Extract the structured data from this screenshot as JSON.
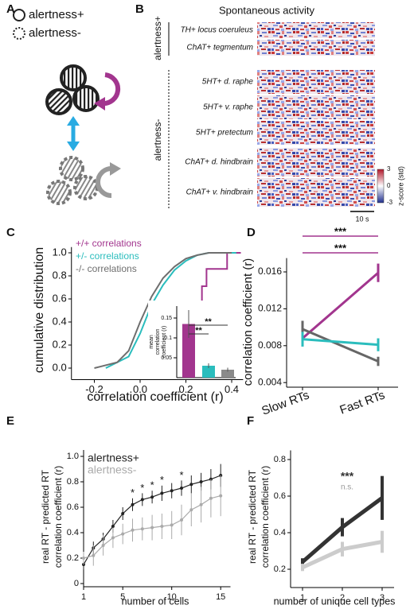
{
  "chart_data": [
    {
      "type": "diagram",
      "panel": "A",
      "legend": [
        "alertness+",
        "alertness-"
      ]
    },
    {
      "type": "heatmap",
      "panel": "B",
      "title": "Spontaneous activity",
      "groups": [
        "alertness+",
        "alertness-"
      ],
      "rows": [
        "TH+ locus coeruleus",
        "ChAT+ tegmentum",
        "5HT+ d. raphe",
        "5HT+ v. raphe",
        "5HT+ pretectum",
        "ChAT+ d. hindbrain",
        "ChAT+ v. hindbrain"
      ],
      "colorbar": {
        "label": "z-score (std)",
        "lim": [
          -3,
          3
        ],
        "ticks": [
          3,
          0,
          -3
        ]
      },
      "scale_bar": "10 s"
    },
    {
      "type": "cdf",
      "panel": "C",
      "xlabel": "correlation coefficient (r)",
      "ylabel": "cumulative distribution",
      "xlim": [
        -0.3,
        0.45
      ],
      "ylim": [
        -0.1,
        1.05
      ],
      "xticks": [
        -0.2,
        {
          "value": 0,
          "label": "0.0"
        },
        0.2,
        0.4
      ],
      "yticks": [
        {
          "value": 0,
          "label": "0.0"
        },
        0.2,
        0.4,
        0.6,
        0.8,
        {
          "value": 1,
          "label": "1.0"
        }
      ],
      "series": [
        {
          "name": "+/+ correlations",
          "color": "#a2358e",
          "x": [
            0.05,
            0.1,
            0.1,
            0.12,
            0.12,
            0.18,
            0.18,
            0.24,
            0.24,
            0.27,
            0.27,
            0.29,
            0.29,
            0.38,
            0.38,
            0.44
          ],
          "y": [
            0,
            0,
            0.14,
            0.14,
            0.29,
            0.29,
            0.43,
            0.43,
            0.57,
            0.57,
            0.71,
            0.71,
            0.86,
            0.86,
            1.0,
            1.0
          ]
        },
        {
          "name": "+/- correlations",
          "color": "#2bbdbd",
          "x": [
            -0.15,
            -0.05,
            0,
            0.05,
            0.1,
            0.15,
            0.2,
            0.25,
            0.3,
            0.42
          ],
          "y": [
            0,
            0.1,
            0.3,
            0.55,
            0.72,
            0.85,
            0.93,
            0.98,
            1.0,
            1.0
          ]
        },
        {
          "name": "-/- correlations",
          "color": "#6e6e6e",
          "x": [
            -0.2,
            -0.1,
            -0.05,
            0,
            0.05,
            0.1,
            0.15,
            0.2,
            0.25,
            0.3,
            0.4
          ],
          "y": [
            0,
            0.05,
            0.15,
            0.4,
            0.62,
            0.78,
            0.88,
            0.95,
            0.98,
            1.0,
            1.0
          ]
        }
      ],
      "inset": {
        "type": "bar",
        "ylabel": [
          "mean",
          "correlation",
          "coefficient (r)"
        ],
        "ylim": [
          0,
          0.18
        ],
        "yticks": [
          0.05,
          0.1,
          0.15
        ],
        "values": [
          0.135,
          0.03,
          0.02
        ],
        "errors": [
          0.035,
          0.006,
          0.005
        ],
        "colors": [
          "#a2358e",
          "#2bbdbd",
          "#8a8a8a"
        ],
        "significance": [
          "**",
          "**"
        ]
      }
    },
    {
      "type": "line",
      "panel": "D",
      "ylabel": "correlation coefficient (r)",
      "categories": [
        "Slow RTs",
        "Fast RTs"
      ],
      "ylim": [
        0.0035,
        0.0175
      ],
      "yticks": [
        0.004,
        0.008,
        0.012,
        0.016
      ],
      "series": [
        {
          "color": "#a2358e",
          "values": [
            0.0088,
            0.0159
          ],
          "errors": [
            0.0008,
            0.001
          ]
        },
        {
          "color": "#666666",
          "values": [
            0.0098,
            0.0063
          ],
          "errors": [
            0.0009,
            0.0005
          ]
        },
        {
          "color": "#2bbdbd",
          "values": [
            0.0087,
            0.0081
          ],
          "errors": [
            0.0008,
            0.0007
          ]
        }
      ],
      "significance": [
        "***",
        "***"
      ]
    },
    {
      "type": "line",
      "panel": "E",
      "xlabel": "number of cells",
      "ylabel": [
        "real RT - predicted RT",
        "correlation coefficient (r)"
      ],
      "x": [
        1,
        2,
        3,
        4,
        5,
        6,
        7,
        8,
        9,
        10,
        11,
        12,
        13,
        14,
        15
      ],
      "xlim": [
        1,
        16
      ],
      "ylim": [
        -0.025,
        1.05
      ],
      "xticks": [
        1,
        5,
        10,
        15
      ],
      "yticks": [
        0,
        0.2,
        0.4,
        0.6,
        0.8,
        {
          "value": 1,
          "label": "1.0"
        }
      ],
      "series": [
        {
          "name": "alertness+",
          "color": "#222222",
          "values": [
            0.15,
            0.28,
            0.35,
            0.45,
            0.55,
            0.62,
            0.66,
            0.68,
            0.71,
            0.73,
            0.75,
            0.78,
            0.8,
            0.82,
            0.85
          ],
          "errors": [
            0.04,
            0.05,
            0.05,
            0.05,
            0.05,
            0.05,
            0.05,
            0.05,
            0.06,
            0.06,
            0.06,
            0.07,
            0.07,
            0.08,
            0.09
          ]
        },
        {
          "name": "alertness-",
          "color": "#aaaaaa",
          "values": [
            0.2,
            0.22,
            0.3,
            0.36,
            0.39,
            0.42,
            0.43,
            0.44,
            0.45,
            0.46,
            0.5,
            0.58,
            0.62,
            0.67,
            0.69
          ],
          "errors": [
            0.05,
            0.08,
            0.08,
            0.08,
            0.08,
            0.09,
            0.09,
            0.1,
            0.1,
            0.11,
            0.12,
            0.13,
            0.14,
            0.15,
            0.16
          ]
        }
      ],
      "stars": {
        "x": [
          6,
          7,
          8,
          9,
          11
        ],
        "label": "*"
      }
    },
    {
      "type": "line",
      "panel": "F",
      "xlabel": "number of unique cell types",
      "ylabel": [
        "real RT - predicted RT",
        "correlation coefficient (r)"
      ],
      "x": [
        1,
        2,
        3
      ],
      "xlim": [
        0.7,
        3.3
      ],
      "ylim": [
        0.1,
        0.85
      ],
      "xticks": [
        1,
        2,
        3
      ],
      "yticks": [
        0.2,
        0.4,
        0.6,
        0.8
      ],
      "series": [
        {
          "color": "#333333",
          "values": [
            0.24,
            0.43,
            0.59
          ],
          "errors": [
            0.02,
            0.05,
            0.12
          ]
        },
        {
          "color": "#cccccc",
          "values": [
            0.21,
            0.31,
            0.35
          ],
          "errors": [
            0.02,
            0.04,
            0.06
          ]
        }
      ],
      "significance": [
        "***",
        "n.s."
      ]
    }
  ]
}
